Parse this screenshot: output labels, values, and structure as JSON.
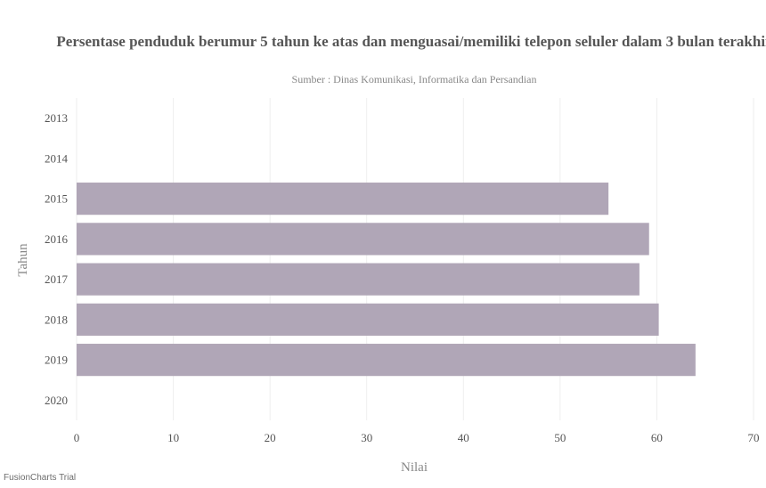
{
  "chart_data": {
    "type": "bar",
    "orientation": "horizontal",
    "title": "Persentase penduduk berumur 5 tahun ke atas dan menguasai/memiliki telepon seluler dalam 3 bulan terakhir",
    "subtitle": "Sumber : Dinas Komunikasi, Informatika dan Persandian",
    "xlabel": "Nilai",
    "ylabel": "Tahun",
    "categories": [
      "2013",
      "2014",
      "2015",
      "2016",
      "2017",
      "2018",
      "2019",
      "2020"
    ],
    "values": [
      null,
      null,
      55.0,
      59.2,
      58.2,
      60.2,
      64.0,
      null
    ],
    "xlim": [
      0,
      70
    ],
    "xticks": [
      0,
      10,
      20,
      30,
      40,
      50,
      60,
      70
    ],
    "grid": true,
    "colors": {
      "bar": "#b0a6b7",
      "grid": "#eeeeee"
    }
  },
  "watermark": "FusionCharts Trial"
}
